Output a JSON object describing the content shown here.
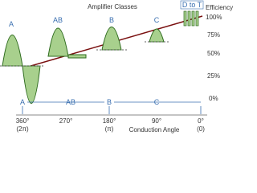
{
  "title": "Amplifier Classes",
  "classes": {
    "top": [
      "A",
      "AB",
      "B",
      "C",
      "D to T"
    ],
    "bottom": [
      "A",
      "AB",
      "B",
      "C"
    ]
  },
  "efficiency": {
    "label": "Efficiency",
    "ticks": [
      "100%",
      "75%",
      "50%",
      "25%",
      "0%"
    ]
  },
  "angle": {
    "label": "Conduction Angle",
    "ticks": [
      [
        "360°",
        "(2π)"
      ],
      [
        "270°",
        ""
      ],
      [
        "180°",
        "(π)"
      ],
      [
        "90°",
        ""
      ],
      [
        "0°",
        "(0)"
      ]
    ]
  }
}
